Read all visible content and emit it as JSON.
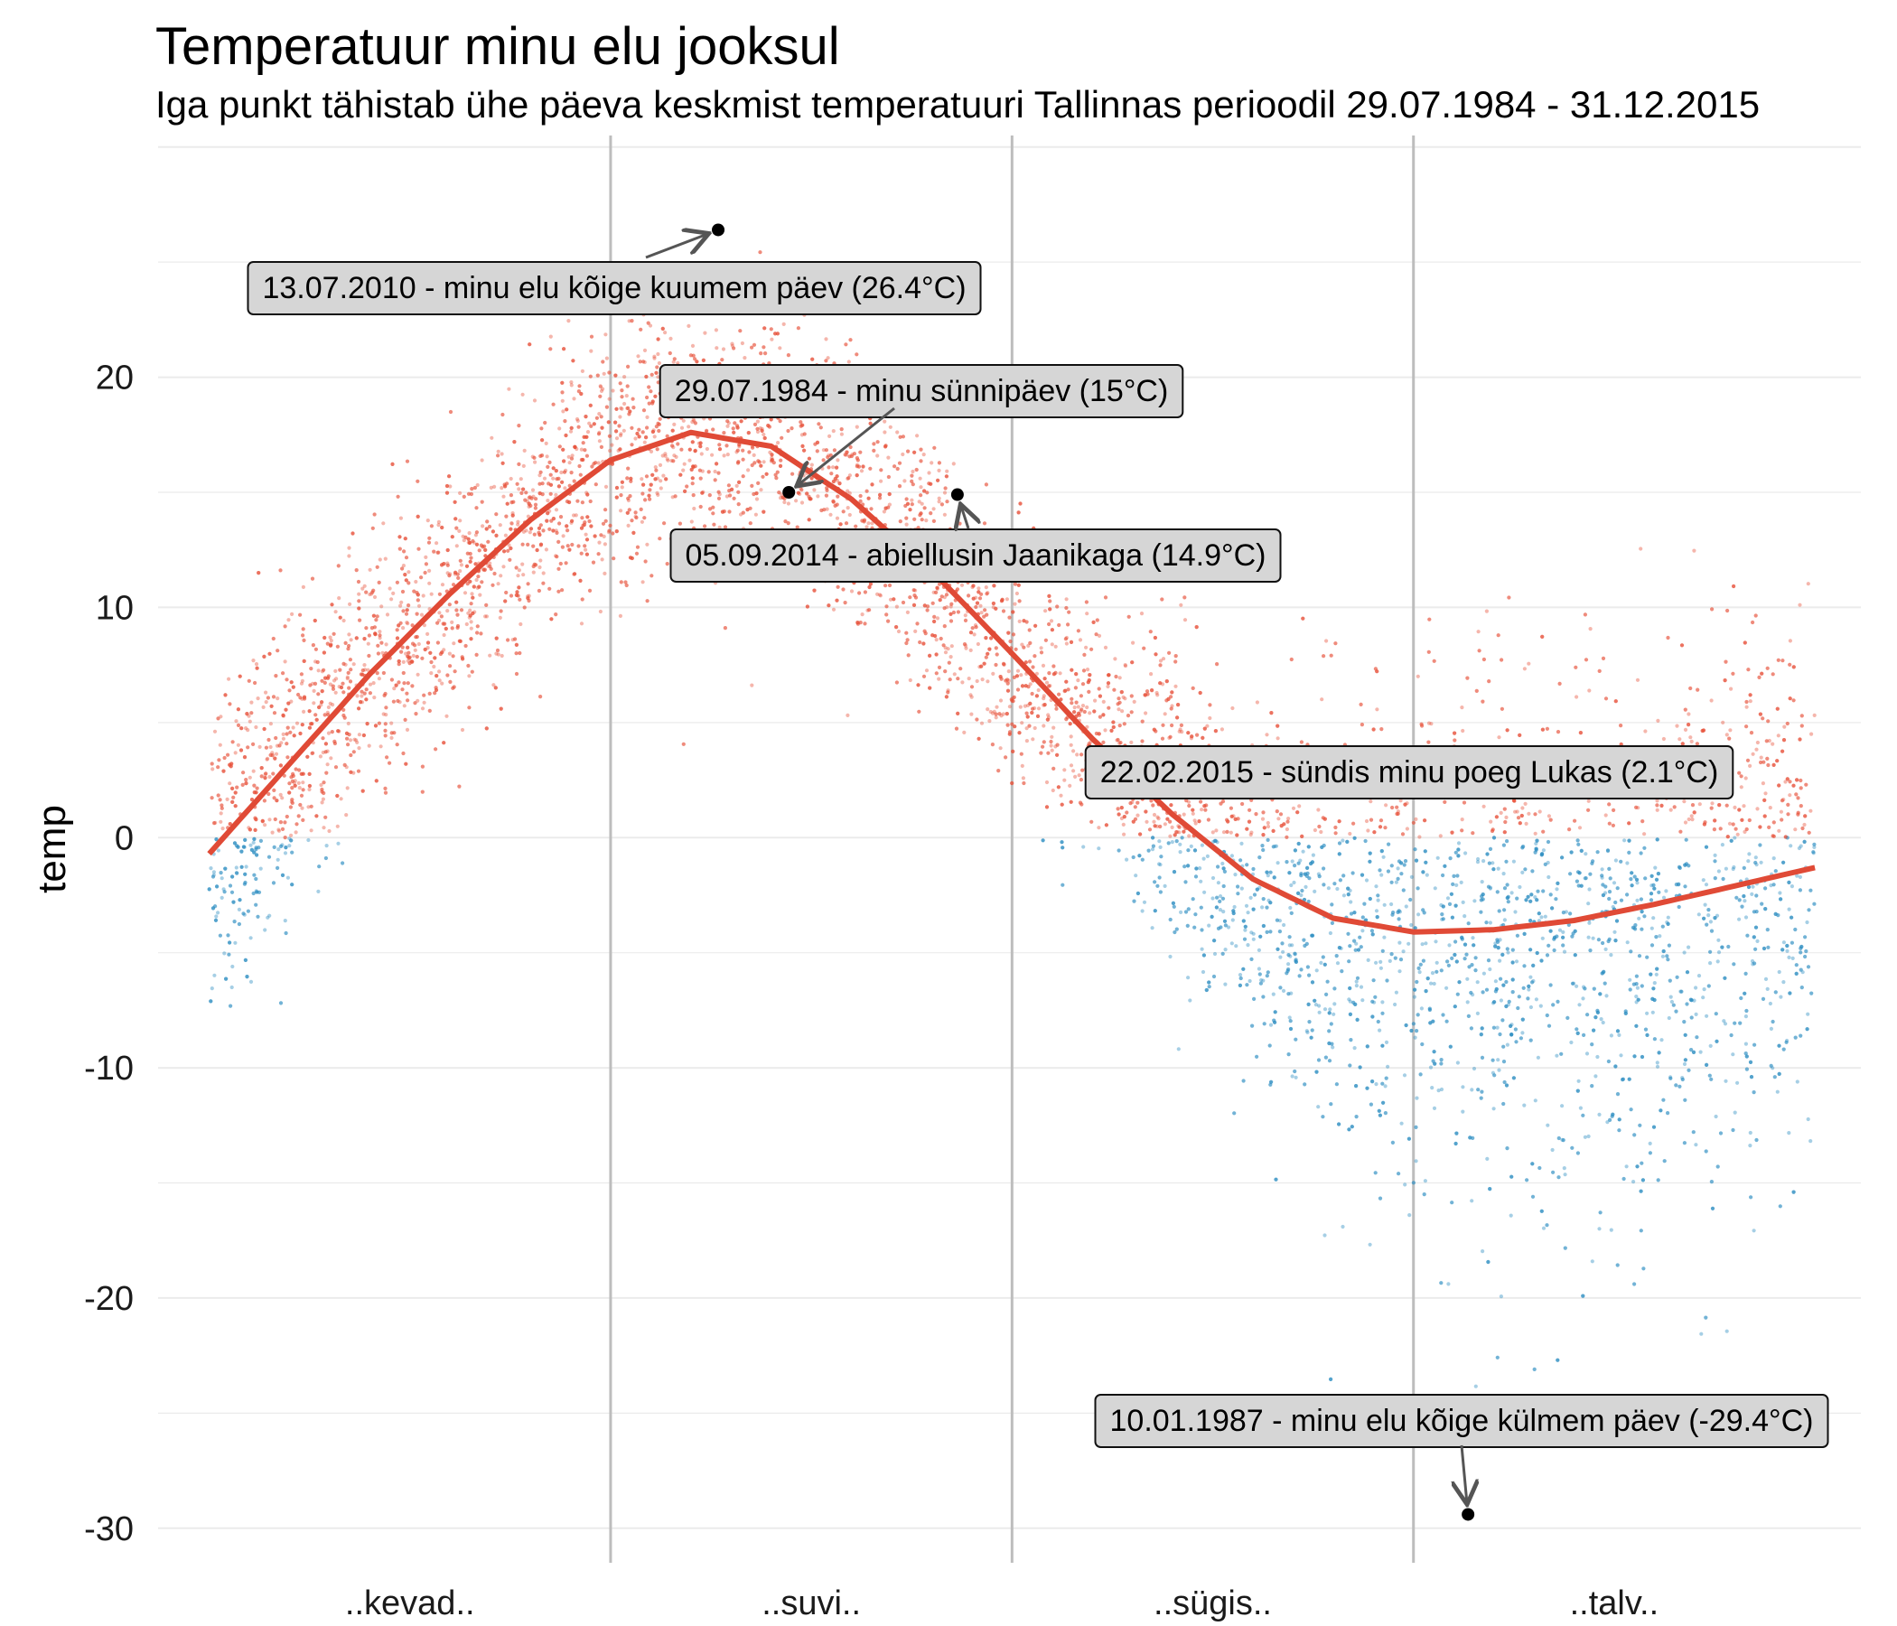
{
  "chart_data": {
    "type": "scatter",
    "title": "Temperatuur minu elu jooksul",
    "subtitle": "Iga punkt tähistab ühe päeva keskmist temperatuuri Tallinnas perioodil 29.07.1984 - 31.12.2015",
    "xlabel": "",
    "ylabel": "temp",
    "ylim": [
      -31.5,
      30.5
    ],
    "y_ticks": [
      -30,
      -20,
      -10,
      0,
      10,
      20
    ],
    "x_categories": [
      "..kevad..",
      "..suvi..",
      "..sügis..",
      "..talv.."
    ],
    "grid": true,
    "legend": "none",
    "colors": {
      "above_zero": "#e8503a",
      "below_zero": "#2c8cc2",
      "smooth_line": "#e04a36",
      "highlight_point": "#000000",
      "label_fill": "#d6d6d6",
      "season_divider": "#bdbdbd",
      "gridline": "#ebebeb"
    },
    "series": [
      {
        "type": "smooth",
        "x": [
          0,
          0.05,
          0.1,
          0.15,
          0.2,
          0.25,
          0.3,
          0.35,
          0.4,
          0.45,
          0.5,
          0.55,
          0.6,
          0.65,
          0.7,
          0.75,
          0.8,
          0.85,
          0.9,
          0.95,
          1.0
        ],
        "y": [
          -0.7,
          3.2,
          7.1,
          10.6,
          13.8,
          16.4,
          17.6,
          17.0,
          14.7,
          11.6,
          8.0,
          4.3,
          1.0,
          -1.8,
          -3.5,
          -4.1,
          -4.0,
          -3.6,
          -2.9,
          -2.1,
          -1.3
        ]
      }
    ],
    "annotations": [
      {
        "label": "13.07.2010 - minu elu kõige kuumem päev (26.4°C)",
        "date": "13.07.2010",
        "x": 0.317,
        "y": 26.4
      },
      {
        "label": "29.07.1984 - minu sünnipäev (15°C)",
        "date": "29.07.1984",
        "x": 0.361,
        "y": 15.0
      },
      {
        "label": "05.09.2014 - abiellusin Jaanikaga (14.9°C)",
        "date": "05.09.2014",
        "x": 0.466,
        "y": 14.9
      },
      {
        "label": "22.02.2015 - sündis minu poeg Lukas (2.1°C)",
        "date": "22.02.2015",
        "x": 0.784,
        "y": 2.1
      },
      {
        "label": "10.01.1987 - minu elu kõige külmem päev (-29.4°C)",
        "date": "10.01.1987",
        "x": 0.784,
        "y": -29.4
      }
    ]
  }
}
